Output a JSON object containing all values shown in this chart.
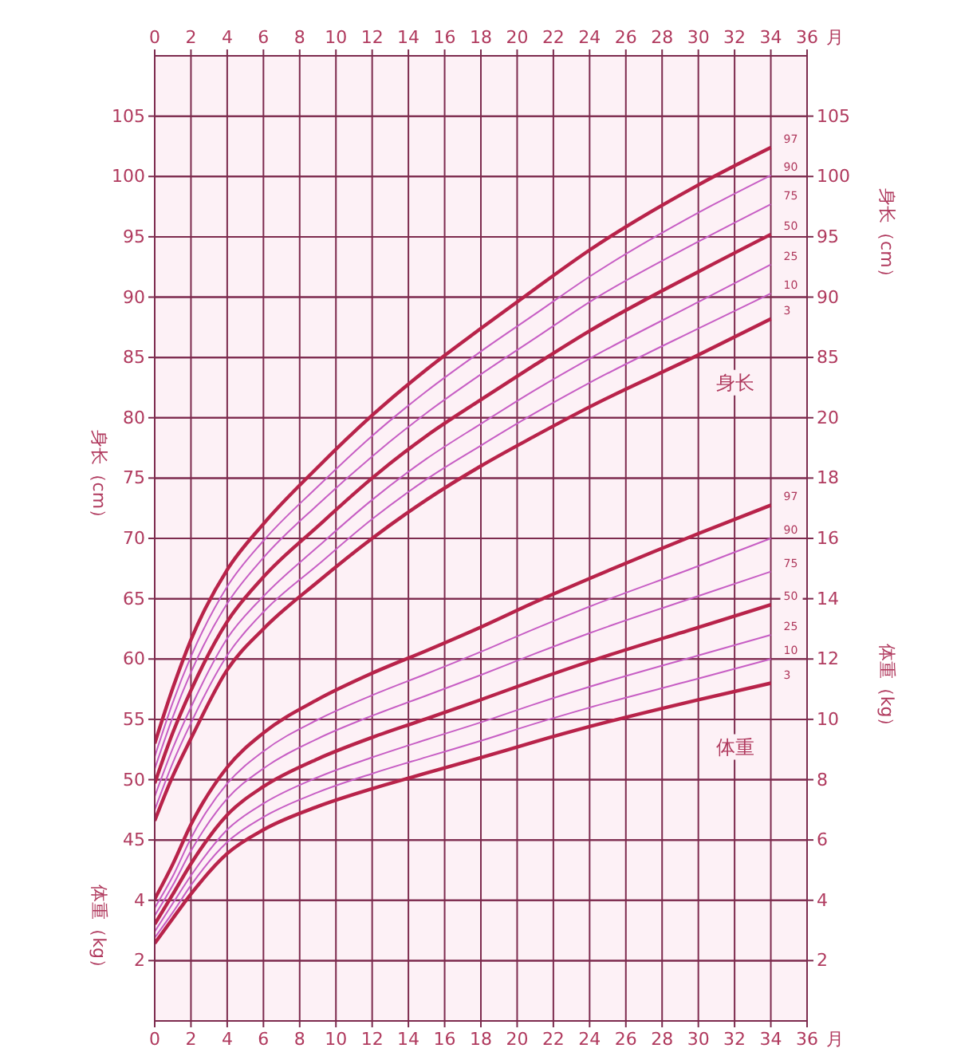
{
  "chart_data": [
    {
      "type": "line",
      "x": [
        0,
        1,
        2,
        4,
        6,
        9,
        12,
        15,
        18,
        21,
        24,
        30,
        34
      ],
      "xlim": [
        0,
        36
      ],
      "tick_labels": "y",
      "ylabel": "身长（cm）",
      "ylim": [
        30,
        110
      ],
      "yticks": [
        45,
        50,
        55,
        60,
        65,
        70,
        75,
        80,
        85,
        90,
        95,
        100,
        105
      ],
      "y2label": "身长（cm）",
      "y2lim": [
        30,
        110
      ],
      "y2ticks": [
        85,
        90,
        95,
        100,
        105
      ],
      "grid": true,
      "annotations": [
        "身长"
      ],
      "series": [
        {
          "name": "97",
          "color": "#b8234a",
          "values": [
            53.0,
            57.6,
            61.6,
            67.4,
            71.2,
            75.9,
            80.2,
            84.0,
            87.4,
            90.7,
            93.9,
            99.3,
            102.4
          ]
        },
        {
          "name": "90",
          "color": "#c75ec4",
          "values": [
            51.9,
            56.4,
            60.2,
            66.0,
            69.8,
            74.3,
            78.5,
            82.2,
            85.5,
            88.6,
            91.7,
            97.0,
            100.1
          ]
        },
        {
          "name": "75",
          "color": "#c75ec4",
          "values": [
            50.9,
            55.2,
            58.9,
            64.6,
            68.4,
            72.8,
            76.8,
            80.4,
            83.6,
            86.6,
            89.6,
            94.6,
            97.7
          ]
        },
        {
          "name": "50",
          "color": "#b8234a",
          "values": [
            49.7,
            53.9,
            57.4,
            63.1,
            66.8,
            71.0,
            75.0,
            78.5,
            81.5,
            84.4,
            87.2,
            92.1,
            95.2
          ]
        },
        {
          "name": "25",
          "color": "#c75ec4",
          "values": [
            48.6,
            52.6,
            56.0,
            61.7,
            65.2,
            69.3,
            73.2,
            76.6,
            79.5,
            82.3,
            84.9,
            89.6,
            92.7
          ]
        },
        {
          "name": "10",
          "color": "#c75ec4",
          "values": [
            47.5,
            51.4,
            54.7,
            60.3,
            63.9,
            67.8,
            71.6,
            74.9,
            77.7,
            80.4,
            82.9,
            87.4,
            90.3
          ]
        },
        {
          "name": "3",
          "color": "#b8234a",
          "values": [
            46.6,
            50.3,
            53.4,
            59.1,
            62.5,
            66.4,
            70.0,
            73.2,
            76.0,
            78.5,
            80.9,
            85.2,
            88.2
          ]
        }
      ]
    },
    {
      "type": "line",
      "x": [
        0,
        1,
        2,
        4,
        6,
        9,
        12,
        15,
        18,
        21,
        24,
        30,
        34
      ],
      "xlabel": "月",
      "xlim": [
        0,
        36
      ],
      "xticks": [
        0,
        2,
        4,
        6,
        8,
        10,
        12,
        14,
        16,
        18,
        20,
        22,
        24,
        26,
        28,
        30,
        32,
        34,
        36
      ],
      "x2label": "月",
      "x2lim": [
        0,
        36
      ],
      "x2ticks": [
        0,
        2,
        4,
        6,
        8,
        10,
        12,
        14,
        16,
        18,
        20,
        22,
        24,
        26,
        28,
        30,
        32,
        34,
        36
      ],
      "ylabel": "体重（kg）",
      "ylim": [
        0,
        32
      ],
      "yticks": [
        2,
        4
      ],
      "y2label": "体重（kg）",
      "y2lim": [
        0,
        32
      ],
      "y2ticks": [
        2,
        4,
        6,
        8,
        10,
        12,
        14,
        16,
        18,
        20
      ],
      "grid": true,
      "annotations": [
        "体重"
      ],
      "series": [
        {
          "name": "97",
          "color": "#b8234a",
          "values": [
            4.04,
            5.2,
            6.51,
            8.41,
            9.55,
            10.66,
            11.53,
            12.28,
            13.06,
            13.89,
            14.67,
            16.16,
            17.1
          ]
        },
        {
          "name": "90",
          "color": "#c75ec4",
          "values": [
            3.75,
            4.8,
            6.06,
            7.87,
            8.94,
            9.99,
            10.8,
            11.51,
            12.24,
            13.01,
            13.74,
            15.08,
            16.0
          ]
        },
        {
          "name": "75",
          "color": "#c75ec4",
          "values": [
            3.49,
            4.5,
            5.64,
            7.37,
            8.37,
            9.36,
            10.12,
            10.79,
            11.47,
            12.18,
            12.86,
            14.09,
            14.9
          ]
        },
        {
          "name": "50",
          "color": "#b8234a",
          "values": [
            3.21,
            4.2,
            5.21,
            6.83,
            7.77,
            8.69,
            9.4,
            10.02,
            10.65,
            11.3,
            11.92,
            13.05,
            13.8
          ]
        },
        {
          "name": "25",
          "color": "#c75ec4",
          "values": [
            2.96,
            3.9,
            4.82,
            6.34,
            7.21,
            8.08,
            8.74,
            9.33,
            9.9,
            10.51,
            11.08,
            12.12,
            12.8
          ]
        },
        {
          "name": "10",
          "color": "#c75ec4",
          "values": [
            2.76,
            3.6,
            4.5,
            5.93,
            6.76,
            7.58,
            8.2,
            8.75,
            9.29,
            9.86,
            10.39,
            11.35,
            12.0
          ]
        },
        {
          "name": "3",
          "color": "#b8234a",
          "values": [
            2.57,
            3.4,
            4.21,
            5.55,
            6.34,
            7.11,
            7.7,
            8.22,
            8.73,
            9.26,
            9.76,
            10.65,
            11.2
          ]
        }
      ]
    }
  ]
}
